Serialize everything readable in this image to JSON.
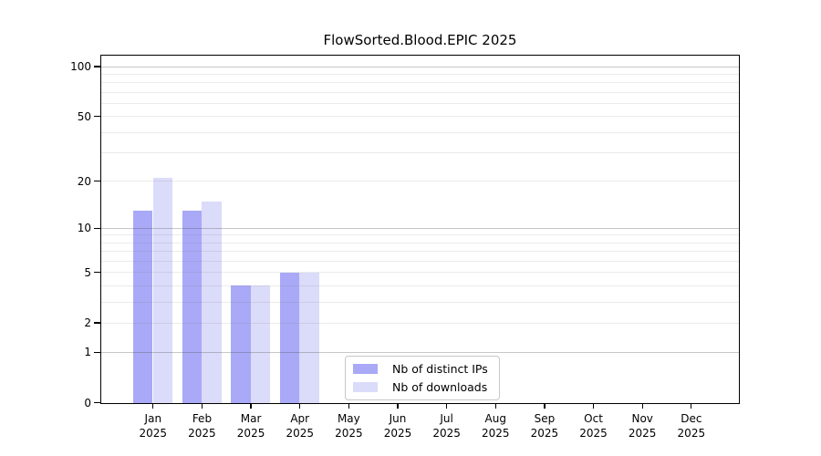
{
  "chart_data": {
    "type": "bar",
    "title": "FlowSorted.Blood.EPIC 2025",
    "yscale": "log1p",
    "categories": [
      "Jan",
      "Feb",
      "Mar",
      "Apr",
      "May",
      "Jun",
      "Jul",
      "Aug",
      "Sep",
      "Oct",
      "Nov",
      "Dec"
    ],
    "category_year": "2025",
    "series": [
      {
        "name": "Nb of distinct IPs",
        "color": "#a9a9f7",
        "values": [
          13,
          13,
          4,
          5,
          0,
          0,
          0,
          0,
          0,
          0,
          0,
          0
        ]
      },
      {
        "name": "Nb of downloads",
        "color": "#dbdbfa",
        "values": [
          21,
          15,
          4,
          5,
          0,
          0,
          0,
          0,
          0,
          0,
          0,
          0
        ]
      }
    ],
    "ytick_labels": [
      0,
      1,
      2,
      5,
      10,
      20,
      50,
      100
    ],
    "major_gridlines": [
      1,
      10,
      100
    ],
    "minor_gridlines": [
      2,
      3,
      4,
      5,
      6,
      7,
      8,
      9,
      20,
      30,
      40,
      50,
      60,
      70,
      80,
      90
    ],
    "ylim": [
      0,
      116
    ],
    "grid": true,
    "legend_position": "lower center, inside plot"
  },
  "colors": {
    "background": "#ffffff",
    "axis": "#000000",
    "distinct_ips_bar": "#a9a9f7",
    "downloads_bar": "#dbdbfa",
    "legend_border": "#c7c7c7"
  }
}
